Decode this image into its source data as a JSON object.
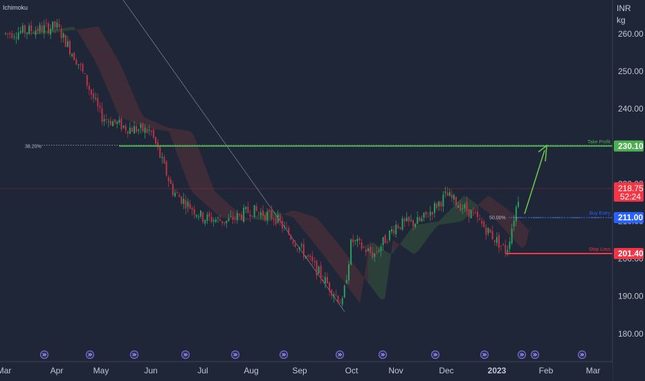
{
  "indicator": {
    "name": "Ichimoku"
  },
  "colors": {
    "background": "#1e2637",
    "up": "#2e9e5e",
    "down": "#c03245",
    "take_profit": "#4caf50",
    "buy_entry": "#2962ff",
    "stop_loss": "#f23645",
    "price": "#f23645",
    "arrow": "#6fc24a",
    "cloud_bull": "#2f4a3a",
    "cloud_bear": "#4a2f3a"
  },
  "chart_data": {
    "type": "candlestick",
    "xlabel": "",
    "ylabel": "",
    "currency": "INR",
    "unit": "kg",
    "ylim": [
      175,
      265
    ],
    "y_ticks": [
      "260.00",
      "250.00",
      "240.00",
      "230.00",
      "220.00",
      "210.00",
      "200.00",
      "190.00",
      "180.00"
    ],
    "x_ticks": [
      "Mar",
      "Apr",
      "May",
      "Jun",
      "Jul",
      "Aug",
      "Sep",
      "Oct",
      "Nov",
      "Dec",
      "2023",
      "Feb",
      "Mar"
    ],
    "price_path": [
      {
        "t": "Mar",
        "v": 260
      },
      {
        "t": "Apr",
        "v": 262
      },
      {
        "t": "mid-Apr",
        "v": 252
      },
      {
        "t": "May",
        "v": 238
      },
      {
        "t": "mid-May",
        "v": 235
      },
      {
        "t": "Jun",
        "v": 234
      },
      {
        "t": "mid-Jun",
        "v": 218
      },
      {
        "t": "Jul",
        "v": 211
      },
      {
        "t": "mid-Jul",
        "v": 210
      },
      {
        "t": "Aug",
        "v": 213
      },
      {
        "t": "mid-Aug",
        "v": 211
      },
      {
        "t": "Sep",
        "v": 203
      },
      {
        "t": "late-Sep",
        "v": 188
      },
      {
        "t": "Oct",
        "v": 205
      },
      {
        "t": "mid-Oct",
        "v": 201
      },
      {
        "t": "Nov",
        "v": 209
      },
      {
        "t": "mid-Nov",
        "v": 210
      },
      {
        "t": "Dec",
        "v": 217
      },
      {
        "t": "mid-Dec",
        "v": 212
      },
      {
        "t": "2023",
        "v": 202
      },
      {
        "t": "mid-Jan",
        "v": 219
      }
    ],
    "levels": [
      {
        "name": "Take Profit",
        "value": 230.1,
        "tag": "230.10"
      },
      {
        "name": "Buy Entry",
        "value": 211.0,
        "tag": "211.00"
      },
      {
        "name": "Stop Loss",
        "value": 201.4,
        "tag": "201.40"
      }
    ],
    "fib_levels": [
      {
        "label": "38.20%",
        "value": 230.1
      },
      {
        "label": "50.00%",
        "value": 211.0
      }
    ],
    "current_price": {
      "value": "218.75",
      "countdown": "52:24"
    },
    "grid": false
  }
}
